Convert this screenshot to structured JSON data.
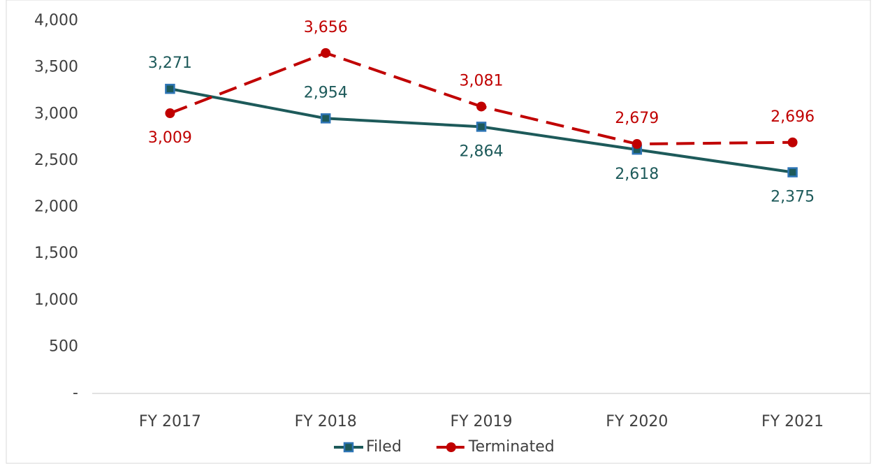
{
  "chart_data": {
    "type": "line",
    "categories": [
      "FY 2017",
      "FY 2018",
      "FY 2019",
      "FY 2020",
      "FY 2021"
    ],
    "series": [
      {
        "name": "Filed",
        "color": "#1d5a5a",
        "marker_color": "#2e75b6",
        "dash": false,
        "marker": "square",
        "values": [
          3271,
          2954,
          2864,
          2618,
          2375
        ],
        "value_labels": [
          "3,271",
          "2,954",
          "2,864",
          "2,618",
          "2,375"
        ]
      },
      {
        "name": "Terminated",
        "color": "#c00000",
        "marker_color": "#c00000",
        "dash": true,
        "marker": "circle",
        "values": [
          3009,
          3656,
          3081,
          2679,
          2696
        ],
        "value_labels": [
          "3,009",
          "3,656",
          "3,081",
          "2,679",
          "2,696"
        ]
      }
    ],
    "ylim": [
      0,
      4000
    ],
    "yticks": [
      {
        "value": 0,
        "label": "-"
      },
      500,
      {
        "value": 1000,
        "label": "1,000"
      },
      {
        "value": 1500,
        "label": "1,500"
      },
      {
        "value": 2000,
        "label": "2,000"
      },
      {
        "value": 2500,
        "label": "2,500"
      },
      {
        "value": 3000,
        "label": "3,000"
      },
      {
        "value": 3500,
        "label": "3,500"
      },
      {
        "value": 4000,
        "label": "4,000"
      }
    ],
    "grid": false,
    "legend": "bottom"
  }
}
